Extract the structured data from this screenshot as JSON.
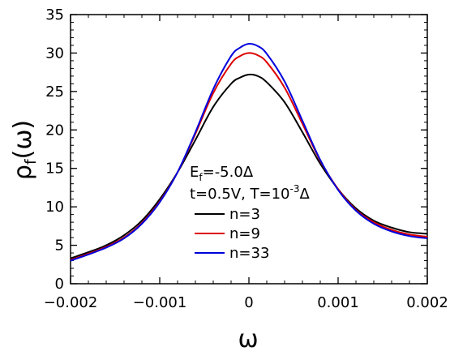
{
  "chart_data": {
    "type": "line",
    "xlabel": "ω",
    "ylabel": "ρ",
    "ylabel_sub": "f",
    "ylabel_suffix": "(ω)",
    "xlim": [
      -0.002,
      0.002
    ],
    "ylim": [
      0,
      35
    ],
    "xticks": [
      -0.002,
      -0.001,
      0,
      0.001,
      0.002
    ],
    "xtick_labels": [
      "−0.002",
      "−0.001",
      "0",
      "0.001",
      "0.002"
    ],
    "yticks": [
      0,
      5,
      10,
      15,
      20,
      25,
      30,
      35
    ],
    "ytick_labels": [
      "0",
      "5",
      "10",
      "15",
      "20",
      "25",
      "30",
      "35"
    ],
    "grid": false,
    "legend_position": "center-bottom",
    "annotation": {
      "line1": {
        "main": "E",
        "sub": "f",
        "rest": "=-5.0Δ"
      },
      "line2": {
        "pre": "t=0.5V, T=10",
        "sup": "-3",
        "post": "Δ"
      }
    },
    "series": [
      {
        "name": "n=3",
        "color": "#000000",
        "x": [
          -0.002,
          -0.0018,
          -0.0016,
          -0.0014,
          -0.0012,
          -0.001,
          -0.0008,
          -0.0006,
          -0.0004,
          -0.0002,
          -0.0001,
          0,
          0.0001,
          0.0002,
          0.0004,
          0.0006,
          0.0008,
          0.001,
          0.0012,
          0.0014,
          0.0016,
          0.0018,
          0.002
        ],
        "y": [
          3.3,
          4.1,
          5.0,
          6.3,
          8.2,
          11.0,
          14.5,
          18.7,
          23.0,
          26.0,
          26.8,
          27.2,
          27.0,
          26.2,
          23.6,
          19.7,
          15.6,
          12.3,
          9.8,
          8.2,
          7.3,
          6.7,
          6.5
        ]
      },
      {
        "name": "n=9",
        "color": "#dd0000",
        "x": [
          -0.002,
          -0.0018,
          -0.0016,
          -0.0014,
          -0.0012,
          -0.001,
          -0.0008,
          -0.0006,
          -0.0004,
          -0.0002,
          -0.0001,
          0,
          0.0001,
          0.0002,
          0.0004,
          0.0006,
          0.0008,
          0.001,
          0.0012,
          0.0014,
          0.0016,
          0.0018,
          0.002
        ],
        "y": [
          3.1,
          3.9,
          4.8,
          6.0,
          7.9,
          10.7,
          14.5,
          19.5,
          24.8,
          28.6,
          29.6,
          30.0,
          29.7,
          28.8,
          25.5,
          20.8,
          16.0,
          12.3,
          9.6,
          8.0,
          7.0,
          6.4,
          6.1
        ]
      },
      {
        "name": "n=33",
        "color": "#0000dd",
        "x": [
          -0.002,
          -0.0018,
          -0.0016,
          -0.0014,
          -0.0012,
          -0.001,
          -0.0008,
          -0.0006,
          -0.0004,
          -0.0002,
          -0.0001,
          0,
          0.0001,
          0.0002,
          0.0004,
          0.0006,
          0.0008,
          0.001,
          0.0012,
          0.0014,
          0.0016,
          0.0018,
          0.002
        ],
        "y": [
          3.0,
          3.8,
          4.7,
          5.9,
          7.8,
          10.6,
          14.5,
          19.7,
          25.3,
          29.6,
          30.7,
          31.2,
          30.9,
          29.9,
          26.3,
          21.2,
          16.1,
          12.2,
          9.5,
          7.8,
          6.8,
          6.2,
          5.9
        ]
      }
    ]
  }
}
